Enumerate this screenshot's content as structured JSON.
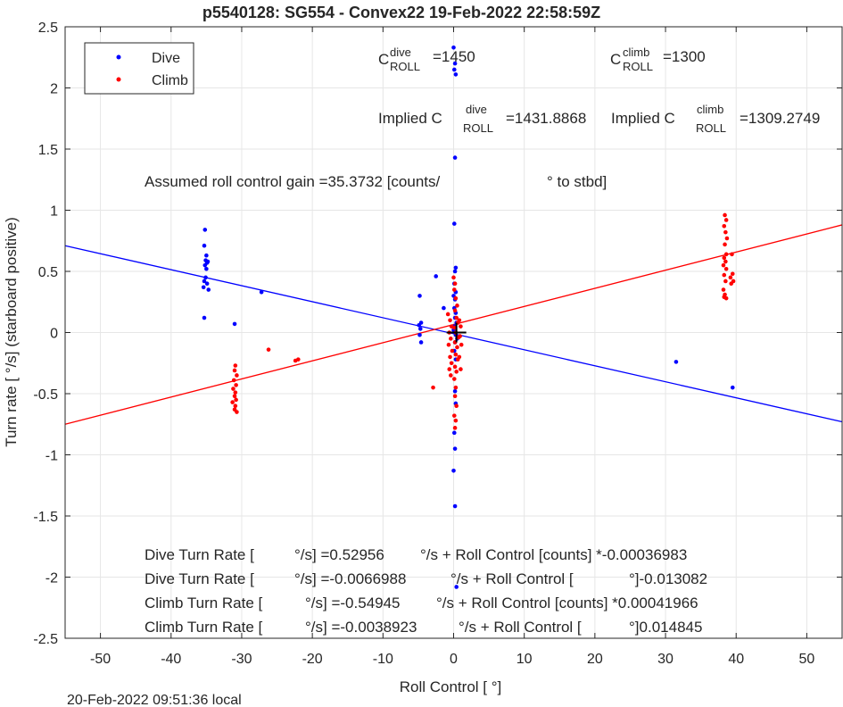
{
  "chart_data": {
    "type": "scatter",
    "title": "p5540128: SG554 - Convex22 19-Feb-2022 22:58:59Z",
    "xlabel": "Roll Control [   °]",
    "ylabel": "Turn rate [   °/s] (starboard positive)",
    "xlim": [
      -55,
      55
    ],
    "ylim": [
      -2.5,
      2.5
    ],
    "xticks": [
      -50,
      -40,
      -30,
      -20,
      -10,
      0,
      10,
      20,
      30,
      40,
      50
    ],
    "yticks": [
      -2.5,
      -2,
      -1.5,
      -1,
      -0.5,
      0,
      0.5,
      1,
      1.5,
      2,
      2.5
    ],
    "grid": true,
    "legend_position": "top-left",
    "footer": "20-Feb-2022 09:51:36 local",
    "colors": {
      "dive": "#0000ff",
      "climb": "#ff0000",
      "center_mark": "#000000"
    },
    "center_mark": {
      "x": 0.4,
      "y": 0
    },
    "annotations": {
      "c_dive": {
        "base": "C",
        "sup": "dive",
        "sub": "ROLL",
        "value": "=1450"
      },
      "c_climb": {
        "base": "C",
        "sup": "climb",
        "sub": "ROLL",
        "value": "=1300"
      },
      "implied_dive": {
        "base": "Implied C",
        "sup": "dive",
        "sub": "ROLL",
        "value": "=1431.8868"
      },
      "implied_climb": {
        "base": "Implied C",
        "sup": "climb",
        "sub": "ROLL",
        "value": "=1309.2749"
      },
      "gain_a": "Assumed roll control gain =35.3732 [counts/",
      "gain_b": "° to stbd]",
      "fit1_a": "Dive Turn Rate [",
      "fit1_b": "°/s] =0.52956",
      "fit1_c": "°/s + Roll Control [counts] *-0.00036983",
      "fit2_a": "Dive Turn Rate [",
      "fit2_b": "°/s] =-0.0066988",
      "fit2_c": "°/s + Roll Control [",
      "fit2_d": "°]-0.013082",
      "fit3_a": "Climb Turn Rate [",
      "fit3_b": "°/s] =-0.54945",
      "fit3_c": "°/s + Roll Control [counts] *0.00041966",
      "fit4_a": "Climb Turn Rate [",
      "fit4_b": "°/s] =-0.0038923",
      "fit4_c": "°/s + Roll Control [",
      "fit4_d": "°]0.014845"
    },
    "series": [
      {
        "name": "Dive",
        "color": "#0000ff",
        "fit_line": [
          [
            -55,
            0.71
          ],
          [
            55,
            -0.73
          ]
        ],
        "points": [
          [
            -35.2,
            0.84
          ],
          [
            -35.3,
            0.71
          ],
          [
            -35.0,
            0.63
          ],
          [
            -35.1,
            0.59
          ],
          [
            -34.9,
            0.57
          ],
          [
            -35.2,
            0.55
          ],
          [
            -34.8,
            0.58
          ],
          [
            -35.0,
            0.52
          ],
          [
            -35.1,
            0.45
          ],
          [
            -35.3,
            0.42
          ],
          [
            -34.9,
            0.4
          ],
          [
            -35.4,
            0.37
          ],
          [
            -34.7,
            0.35
          ],
          [
            -35.3,
            0.12
          ],
          [
            -27.2,
            0.33
          ],
          [
            -31.0,
            0.07
          ],
          [
            -4.8,
            0.3
          ],
          [
            -4.6,
            0.08
          ],
          [
            -4.9,
            0.06
          ],
          [
            -4.7,
            0.03
          ],
          [
            -4.8,
            -0.02
          ],
          [
            -4.6,
            -0.08
          ],
          [
            -2.5,
            0.46
          ],
          [
            -1.4,
            0.2
          ],
          [
            0.0,
            2.33
          ],
          [
            0.2,
            2.2
          ],
          [
            0.1,
            2.15
          ],
          [
            0.3,
            2.11
          ],
          [
            0.2,
            1.43
          ],
          [
            0.1,
            0.89
          ],
          [
            0.3,
            0.53
          ],
          [
            0.2,
            0.5
          ],
          [
            0.1,
            0.4
          ],
          [
            0.3,
            0.33
          ],
          [
            0.0,
            0.3
          ],
          [
            0.2,
            0.27
          ],
          [
            0.1,
            0.2
          ],
          [
            0.3,
            0.16
          ],
          [
            0.2,
            0.12
          ],
          [
            0.4,
            0.08
          ],
          [
            0.1,
            0.05
          ],
          [
            0.0,
            0.02
          ],
          [
            0.3,
            -0.02
          ],
          [
            0.5,
            -0.05
          ],
          [
            0.2,
            -0.08
          ],
          [
            0.1,
            -0.15
          ],
          [
            0.3,
            -0.22
          ],
          [
            0.2,
            -0.48
          ],
          [
            0.3,
            -0.58
          ],
          [
            0.1,
            -0.82
          ],
          [
            0.2,
            -0.95
          ],
          [
            0.0,
            -1.13
          ],
          [
            0.2,
            -1.42
          ],
          [
            0.4,
            -2.08
          ],
          [
            31.5,
            -0.24
          ],
          [
            39.5,
            -0.45
          ]
        ]
      },
      {
        "name": "Climb",
        "color": "#ff0000",
        "fit_line": [
          [
            -55,
            -0.75
          ],
          [
            55,
            0.88
          ]
        ],
        "points": [
          [
            -30.9,
            -0.27
          ],
          [
            -31.0,
            -0.31
          ],
          [
            -30.7,
            -0.35
          ],
          [
            -31.1,
            -0.39
          ],
          [
            -30.8,
            -0.43
          ],
          [
            -31.2,
            -0.46
          ],
          [
            -30.9,
            -0.49
          ],
          [
            -31.0,
            -0.52
          ],
          [
            -30.8,
            -0.55
          ],
          [
            -31.3,
            -0.57
          ],
          [
            -30.9,
            -0.6
          ],
          [
            -31.0,
            -0.63
          ],
          [
            -30.7,
            -0.65
          ],
          [
            -26.2,
            -0.14
          ],
          [
            -22.4,
            -0.23
          ],
          [
            -22.0,
            -0.22
          ],
          [
            -2.9,
            -0.45
          ],
          [
            -0.8,
            0.15
          ],
          [
            -0.5,
            0.1
          ],
          [
            -0.3,
            0.05
          ],
          [
            -0.6,
            0.0
          ],
          [
            -0.4,
            -0.05
          ],
          [
            -0.7,
            -0.1
          ],
          [
            -0.2,
            -0.15
          ],
          [
            -0.5,
            -0.2
          ],
          [
            -0.3,
            -0.25
          ],
          [
            -0.6,
            -0.3
          ],
          [
            -0.4,
            -0.35
          ],
          [
            0.0,
            0.45
          ],
          [
            0.2,
            0.4
          ],
          [
            0.1,
            0.35
          ],
          [
            0.3,
            0.28
          ],
          [
            0.5,
            0.22
          ],
          [
            0.2,
            0.18
          ],
          [
            0.4,
            0.12
          ],
          [
            0.6,
            0.08
          ],
          [
            0.1,
            0.04
          ],
          [
            0.3,
            0.0
          ],
          [
            0.7,
            -0.04
          ],
          [
            0.2,
            -0.08
          ],
          [
            0.5,
            -0.12
          ],
          [
            0.3,
            -0.18
          ],
          [
            0.6,
            -0.22
          ],
          [
            0.2,
            -0.28
          ],
          [
            0.4,
            -0.32
          ],
          [
            0.1,
            -0.38
          ],
          [
            0.3,
            -0.45
          ],
          [
            0.2,
            -0.52
          ],
          [
            0.4,
            -0.6
          ],
          [
            0.1,
            -0.68
          ],
          [
            0.3,
            -0.72
          ],
          [
            0.2,
            -0.78
          ],
          [
            0.8,
            0.1
          ],
          [
            1.0,
            0.05
          ],
          [
            0.9,
            -0.03
          ],
          [
            1.1,
            -0.1
          ],
          [
            0.8,
            -0.2
          ],
          [
            1.0,
            -0.3
          ],
          [
            38.4,
            0.96
          ],
          [
            38.6,
            0.92
          ],
          [
            38.3,
            0.87
          ],
          [
            38.5,
            0.82
          ],
          [
            38.7,
            0.77
          ],
          [
            38.4,
            0.72
          ],
          [
            38.6,
            0.64
          ],
          [
            38.3,
            0.61
          ],
          [
            38.5,
            0.58
          ],
          [
            38.2,
            0.55
          ],
          [
            38.6,
            0.52
          ],
          [
            38.3,
            0.47
          ],
          [
            38.5,
            0.42
          ],
          [
            38.2,
            0.35
          ],
          [
            38.4,
            0.31
          ],
          [
            38.3,
            0.29
          ],
          [
            38.6,
            0.28
          ],
          [
            39.4,
            0.64
          ],
          [
            39.5,
            0.48
          ],
          [
            39.2,
            0.45
          ],
          [
            39.6,
            0.42
          ],
          [
            39.3,
            0.4
          ]
        ]
      }
    ]
  }
}
